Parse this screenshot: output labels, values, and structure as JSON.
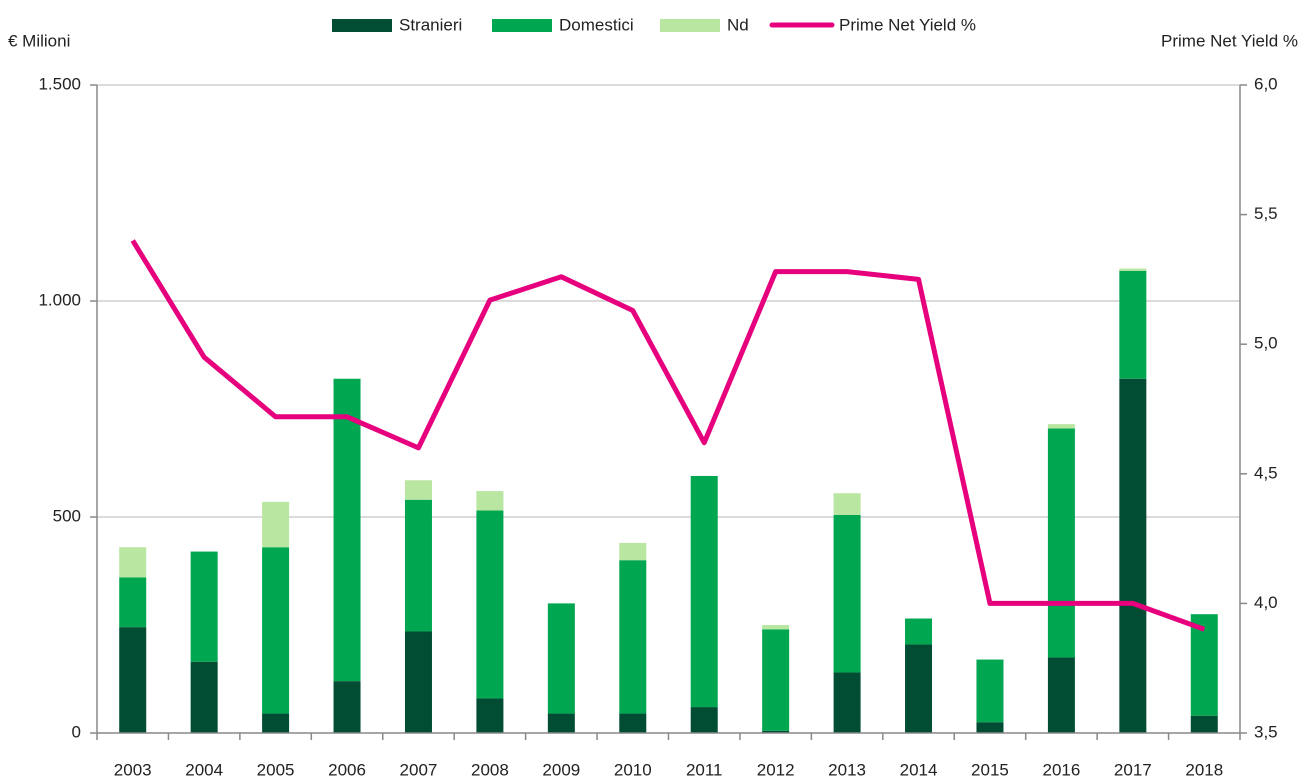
{
  "chart_data": {
    "type": "bar",
    "stacked": true,
    "y_label": "€ Milioni",
    "y2_label": "Prime Net Yield %",
    "categories": [
      "2003",
      "2004",
      "2005",
      "2006",
      "2007",
      "2008",
      "2009",
      "2010",
      "2011",
      "2012",
      "2013",
      "2014",
      "2015",
      "2016",
      "2017",
      "2018"
    ],
    "series": [
      {
        "name": "Stranieri",
        "color": "#004d33",
        "type": "bar",
        "values": [
          245,
          165,
          45,
          120,
          235,
          80,
          45,
          45,
          60,
          5,
          140,
          205,
          25,
          175,
          820,
          40
        ]
      },
      {
        "name": "Domestici",
        "color": "#00a650",
        "type": "bar",
        "values": [
          115,
          255,
          385,
          700,
          305,
          435,
          255,
          355,
          535,
          235,
          365,
          60,
          145,
          530,
          250,
          235
        ]
      },
      {
        "name": "Nd",
        "color": "#b9e6a0",
        "type": "bar",
        "values": [
          70,
          0,
          105,
          0,
          45,
          45,
          0,
          40,
          0,
          10,
          50,
          0,
          0,
          10,
          5,
          0
        ]
      },
      {
        "name": "Prime Net Yield %",
        "color": "#e6007e",
        "type": "line",
        "axis": "y2",
        "values": [
          5.4,
          4.95,
          4.72,
          4.72,
          4.6,
          5.17,
          5.26,
          5.13,
          4.62,
          5.28,
          5.28,
          5.25,
          4.0,
          4.0,
          4.0,
          3.9
        ]
      }
    ],
    "ylim": [
      0,
      1500
    ],
    "yticks": [
      0,
      500,
      {
        "value": 1000,
        "label": "1.000"
      },
      {
        "value": 1500,
        "label": "1.500"
      }
    ],
    "y2lim": [
      3.5,
      6.0
    ],
    "y2ticks": [
      {
        "value": 3.5,
        "label": "3,5"
      },
      {
        "value": 4.0,
        "label": "4,0"
      },
      {
        "value": 4.5,
        "label": "4,5"
      },
      {
        "value": 5.0,
        "label": "5,0"
      },
      {
        "value": 5.5,
        "label": "5,5"
      },
      {
        "value": 6.0,
        "label": "6,0"
      }
    ],
    "grid": true,
    "legend": "top"
  }
}
